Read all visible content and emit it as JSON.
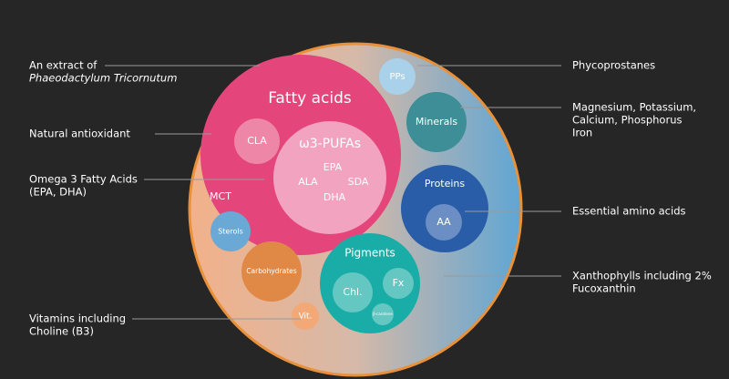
{
  "annotations_left": [
    {
      "lines": [
        "An extract of",
        "Phaeodactylum Tricornutum"
      ]
    },
    {
      "lines": [
        "Natural antioxidant"
      ]
    },
    {
      "lines": [
        "Omega 3 Fatty Acids",
        "(EPA, DHA)"
      ]
    },
    {
      "lines": [
        "Vitamins including",
        "Choline (B3)"
      ]
    }
  ],
  "annotations_right": [
    {
      "lines": [
        "Phycoprostanes"
      ]
    },
    {
      "lines": [
        "Magnesium, Potassium,",
        "Calcium, Phosphorus",
        "Iron"
      ]
    },
    {
      "lines": [
        "Essential  amino acids"
      ]
    },
    {
      "lines": [
        "Xanthophylls including 2%",
        "Fucoxanthin"
      ]
    }
  ],
  "circles": {
    "fatty_acids": {
      "label": "Fatty acids",
      "children": {
        "cla": "CLA",
        "pufa": {
          "label": "ω3-PUFAs",
          "items": [
            "EPA",
            "ALA",
            "SDA",
            "DHA"
          ]
        }
      }
    },
    "mct": "MCT",
    "pps": "PPs",
    "minerals": "Minerals",
    "proteins": {
      "label": "Proteins",
      "children": {
        "aa": "AA"
      }
    },
    "pigments": {
      "label": "Pigments",
      "children": {
        "chl": "Chl.",
        "fx": "Fx",
        "beta": "β-carotene"
      }
    },
    "sterols": "Sterols",
    "carbohydrates": "Carbohydrates",
    "vit": "Vit."
  }
}
